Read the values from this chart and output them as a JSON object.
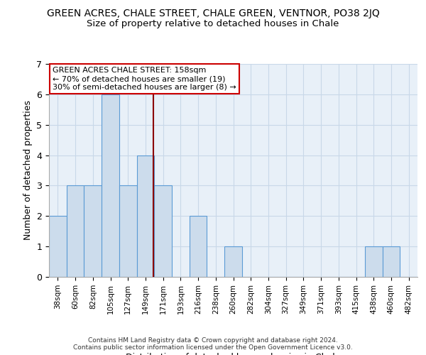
{
  "title": "GREEN ACRES, CHALE STREET, CHALE GREEN, VENTNOR, PO38 2JQ",
  "subtitle": "Size of property relative to detached houses in Chale",
  "xlabel": "Distribution of detached houses by size in Chale",
  "ylabel": "Number of detached properties",
  "bin_labels": [
    "38sqm",
    "60sqm",
    "82sqm",
    "105sqm",
    "127sqm",
    "149sqm",
    "171sqm",
    "193sqm",
    "216sqm",
    "238sqm",
    "260sqm",
    "282sqm",
    "304sqm",
    "327sqm",
    "349sqm",
    "371sqm",
    "393sqm",
    "415sqm",
    "438sqm",
    "460sqm",
    "482sqm"
  ],
  "bar_values": [
    2,
    3,
    3,
    6,
    3,
    4,
    3,
    0,
    2,
    0,
    1,
    0,
    0,
    0,
    0,
    0,
    0,
    0,
    1,
    1,
    0
  ],
  "bar_color": "#ccdcec",
  "bar_edge_color": "#5b9bd5",
  "property_line_x": 5.45,
  "property_line_color": "#8b0000",
  "annotation_text": "GREEN ACRES CHALE STREET: 158sqm\n← 70% of detached houses are smaller (19)\n30% of semi-detached houses are larger (8) →",
  "annotation_box_color": "#ffffff",
  "annotation_box_edge_color": "#cc0000",
  "ylim": [
    0,
    7
  ],
  "yticks": [
    0,
    1,
    2,
    3,
    4,
    5,
    6,
    7
  ],
  "grid_color": "#c8d8e8",
  "bg_color": "#e8f0f8",
  "footer": "Contains HM Land Registry data © Crown copyright and database right 2024.\nContains public sector information licensed under the Open Government Licence v3.0.",
  "title_fontsize": 10,
  "subtitle_fontsize": 9.5,
  "xlabel_fontsize": 9,
  "ylabel_fontsize": 9,
  "annot_fontsize": 8
}
